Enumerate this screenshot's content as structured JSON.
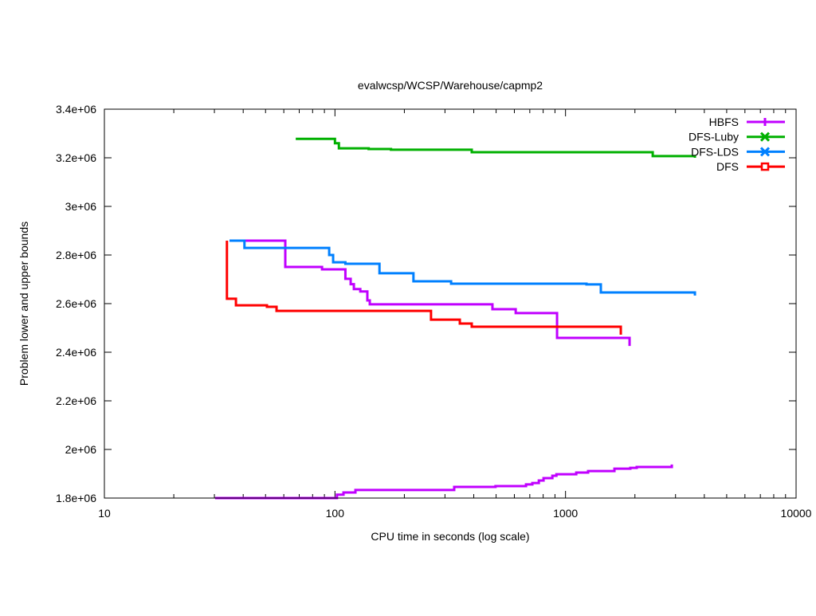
{
  "chart_data": {
    "type": "line",
    "title": "evalwcsp/WCSP/Warehouse/capmp2",
    "xlabel": "CPU time in seconds (log scale)",
    "ylabel": "Problem lower and upper bounds",
    "xscale": "log",
    "xlim": [
      10,
      10000
    ],
    "ylim": [
      1800000,
      3400000
    ],
    "x_ticks": [
      10,
      100,
      1000,
      10000
    ],
    "x_tick_labels": [
      "10",
      "100",
      "1000",
      "10000"
    ],
    "y_ticks": [
      1800000,
      2000000,
      2200000,
      2400000,
      2600000,
      2800000,
      3000000,
      3200000,
      3400000
    ],
    "y_tick_labels": [
      "1.8e+06",
      "2e+06",
      "2.2e+06",
      "2.4e+06",
      "2.6e+06",
      "2.8e+06",
      "3e+06",
      "3.2e+06",
      "3.4e+06"
    ],
    "grid": false,
    "legend_position": "top-right",
    "line_style": "steps",
    "series": [
      {
        "name": "HBFS",
        "color": "#c000ff",
        "marker": "plus",
        "segments": [
          [
            [
              34.9,
              2859000
            ],
            [
              60.9,
              2751000
            ],
            [
              87.9,
              2741000
            ],
            [
              111,
              2702000
            ],
            [
              117,
              2680000
            ],
            [
              120.8,
              2660000
            ],
            [
              128.8,
              2650000
            ],
            [
              138.2,
              2613000
            ],
            [
              141.6,
              2597000
            ],
            [
              482,
              2577000
            ],
            [
              608,
              2561000
            ],
            [
              919,
              2459000
            ],
            [
              1896,
              2426000
            ]
          ],
          [
            [
              30.2,
              1800000
            ],
            [
              102,
              1814000
            ],
            [
              108.9,
              1823000
            ],
            [
              122.7,
              1833000
            ],
            [
              329,
              1846000
            ],
            [
              497,
              1849000
            ],
            [
              674,
              1856000
            ],
            [
              718,
              1862000
            ],
            [
              766,
              1872000
            ],
            [
              803,
              1882000
            ],
            [
              877,
              1892000
            ],
            [
              913,
              1898000
            ],
            [
              1113,
              1905000
            ],
            [
              1253,
              1911000
            ],
            [
              1630,
              1921000
            ],
            [
              1910,
              1924000
            ],
            [
              2036,
              1928000
            ],
            [
              2891,
              1938000
            ]
          ]
        ]
      },
      {
        "name": "DFS-Luby",
        "color": "#00b000",
        "marker": "cross",
        "segments": [
          [
            [
              67.6,
              3278000
            ],
            [
              100,
              3260000
            ],
            [
              104,
              3239000
            ],
            [
              140,
              3236000
            ],
            [
              175,
              3233000
            ],
            [
              392,
              3223000
            ],
            [
              2389,
              3207000
            ],
            [
              3641,
              3200000
            ]
          ]
        ]
      },
      {
        "name": "DFS-LDS",
        "color": "#0080ff",
        "marker": "star",
        "segments": [
          [
            [
              34.9,
              2859000
            ],
            [
              40.5,
              2829000
            ],
            [
              94.4,
              2800000
            ],
            [
              98.2,
              2770000
            ],
            [
              111,
              2764000
            ],
            [
              156,
              2725000
            ],
            [
              219,
              2692000
            ],
            [
              319,
              2682000
            ],
            [
              1233,
              2679000
            ],
            [
              1423,
              2646000
            ],
            [
              3641,
              2633000
            ]
          ]
        ]
      },
      {
        "name": "DFS",
        "color": "#ff0000",
        "marker": "square",
        "segments": [
          [
            [
              34.0,
              2859000
            ],
            [
              34.0,
              2620000
            ],
            [
              37.2,
              2593000
            ],
            [
              50.7,
              2587000
            ],
            [
              55.8,
              2570000
            ],
            [
              261,
              2534000
            ],
            [
              348,
              2518000
            ],
            [
              392,
              2505000
            ],
            [
              1737,
              2472000
            ]
          ]
        ]
      }
    ]
  }
}
